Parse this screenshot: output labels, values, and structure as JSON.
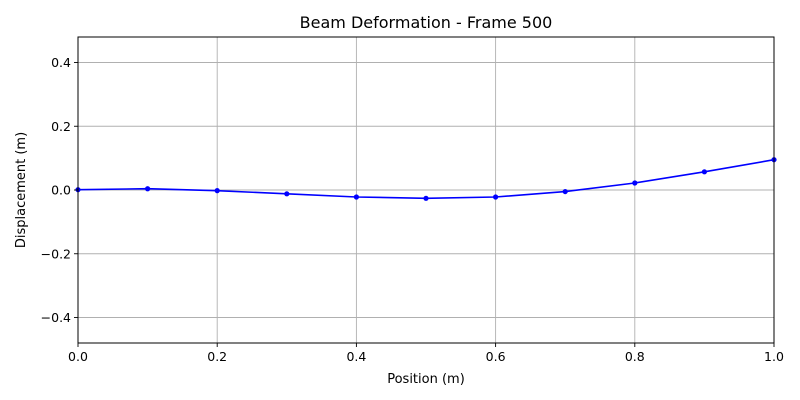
{
  "chart_data": {
    "type": "line",
    "title": "Beam Deformation - Frame 500",
    "xlabel": "Position (m)",
    "ylabel": "Displacement (m)",
    "xlim": [
      0,
      1
    ],
    "ylim": [
      -0.48,
      0.48
    ],
    "grid": true,
    "x_ticks": [
      0,
      0.2,
      0.4,
      0.6,
      0.8,
      1.0
    ],
    "x_tick_labels": [
      "0.0",
      "0.2",
      "0.4",
      "0.6",
      "0.8",
      "1.0"
    ],
    "y_ticks": [
      -0.4,
      -0.2,
      0,
      0.2,
      0.4
    ],
    "y_tick_labels": [
      "−0.4",
      "−0.2",
      "0.0",
      "0.2",
      "0.4"
    ],
    "series": [
      {
        "color": "#0000ff",
        "marker": "circle",
        "x": [
          0.0,
          0.1,
          0.2,
          0.3,
          0.4,
          0.5,
          0.6,
          0.7,
          0.8,
          0.9,
          1.0
        ],
        "y": [
          0.001,
          0.004,
          -0.002,
          -0.012,
          -0.022,
          -0.026,
          -0.022,
          -0.005,
          0.022,
          0.057,
          0.095
        ]
      }
    ]
  }
}
